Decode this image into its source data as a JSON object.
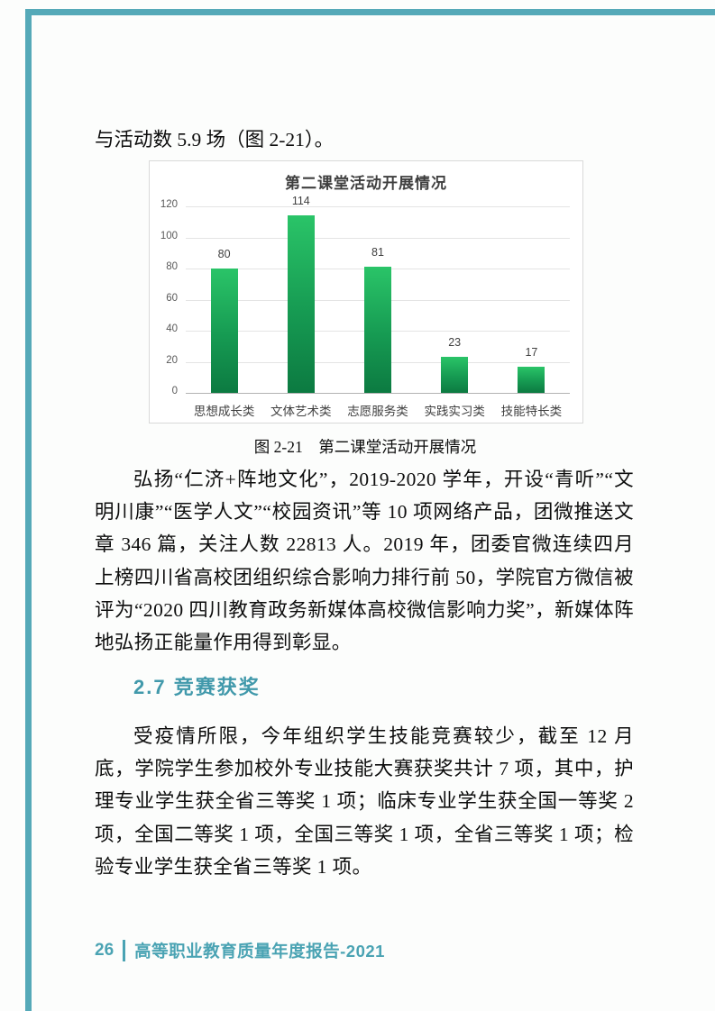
{
  "page": {
    "intro_text": "与活动数 5.9 场（图 2-21）。",
    "figure_caption": "图 2-21　第二课堂活动开展情况",
    "section_heading": "2.7 竞赛获奖",
    "paragraphs": {
      "media": "弘扬“仁济+阵地文化”，2019-2020 学年，开设“青听”“文明川康”“医学人文”“校园资讯”等 10 项网络产品，团微推送文章 346 篇，关注人数 22813 人。2019 年，团委官微连续四月上榜四川省高校团组织综合影响力排行前 50，学院官方微信被评为“2020 四川教育政务新媒体高校微信影响力奖”，新媒体阵地弘扬正能量作用得到彰显。",
      "competition": "受疫情所限，今年组织学生技能竞赛较少，截至 12 月底，学院学生参加校外专业技能大赛获奖共计 7 项，其中，护理专业学生获全省三等奖 1 项；临床专业学生获全国一等奖 2 项，全国二等奖 1 项，全国三等奖 1 项，全省三等奖 1 项；检验专业学生获全省三等奖 1 项。"
    },
    "footer": {
      "page_number": "26",
      "report_title": "高等职业教育质量年度报告-2021"
    }
  },
  "chart_data": {
    "type": "bar",
    "title": "第二课堂活动开展情况",
    "categories": [
      "思想成长类",
      "文体艺术类",
      "志愿服务类",
      "实践实习类",
      "技能特长类"
    ],
    "values": [
      80,
      114,
      81,
      23,
      17
    ],
    "xlabel": "",
    "ylabel": "",
    "ylim": [
      0,
      120
    ],
    "yticks": [
      0,
      20,
      40,
      60,
      80,
      100,
      120
    ],
    "grid": true,
    "legend_position": "none",
    "bar_color_top": "#2ac468",
    "bar_color_bottom": "#0c7a41"
  },
  "colors": {
    "accent_teal": "#4199ab",
    "footer_teal": "#4aa3b3",
    "frame_teal": "#55a9b8",
    "gridline": "#e4e4e4",
    "axis_line": "#b3b3b3",
    "axis_text": "#595959",
    "chart_text": "#404040"
  }
}
